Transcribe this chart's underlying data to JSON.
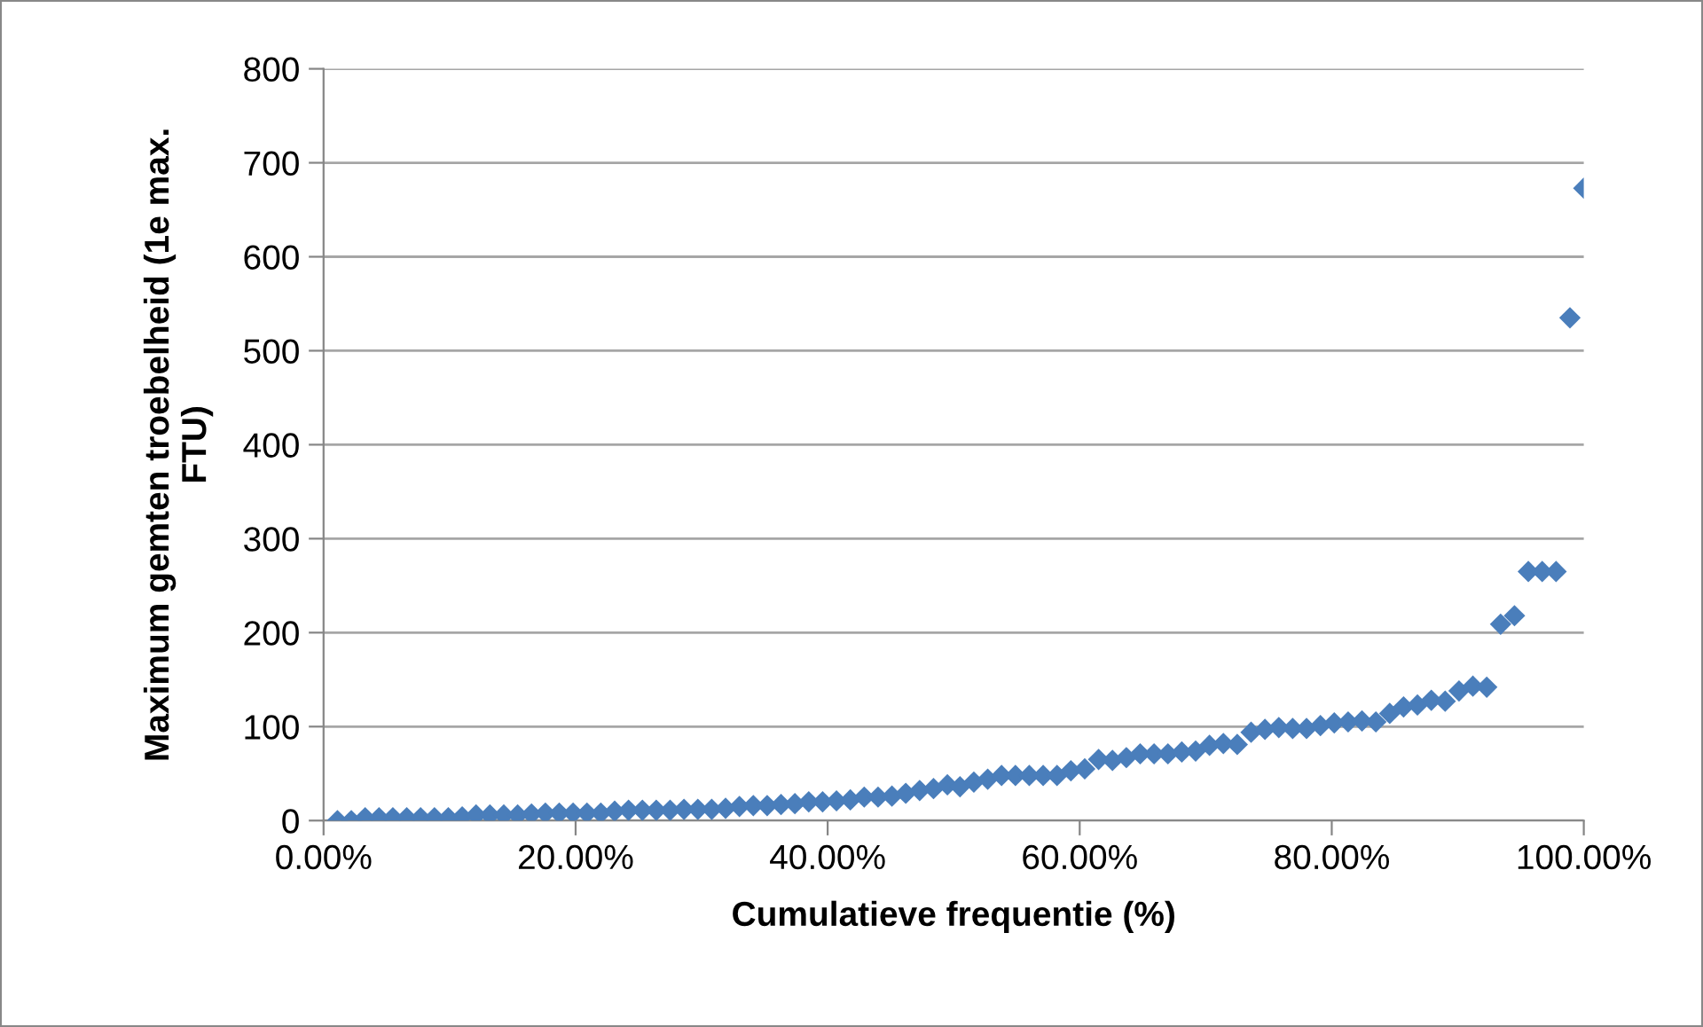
{
  "chart_data": {
    "type": "scatter",
    "xlabel": "Cumulatieve frequentie (%)",
    "ylabel": "Maximum gemten troebelheid (1e max.\nFTU)",
    "x": [
      1.1,
      2.2,
      3.3,
      4.4,
      5.5,
      6.6,
      7.7,
      8.8,
      9.9,
      11.0,
      12.1,
      13.2,
      14.3,
      15.4,
      16.5,
      17.6,
      18.7,
      19.8,
      20.9,
      22.0,
      23.1,
      24.2,
      25.3,
      26.4,
      27.5,
      28.6,
      29.7,
      30.8,
      31.9,
      33.0,
      34.1,
      35.2,
      36.3,
      37.4,
      38.5,
      39.6,
      40.7,
      41.8,
      42.9,
      44.0,
      45.1,
      46.2,
      47.3,
      48.4,
      49.5,
      50.5,
      51.6,
      52.7,
      53.8,
      54.9,
      56.0,
      57.1,
      58.2,
      59.3,
      60.4,
      61.5,
      62.6,
      63.7,
      64.8,
      65.9,
      67.0,
      68.1,
      69.2,
      70.3,
      71.4,
      72.5,
      73.6,
      74.7,
      75.8,
      76.9,
      78.0,
      79.1,
      80.2,
      81.3,
      82.4,
      83.5,
      84.6,
      85.7,
      86.8,
      87.9,
      89.0,
      90.1,
      91.2,
      92.3,
      93.4,
      94.5,
      95.6,
      96.7,
      97.8,
      98.9,
      100.0
    ],
    "series": [
      {
        "color": "#4a7ebb",
        "values": [
          0,
          0,
          3,
          3,
          3,
          3,
          3,
          3,
          3,
          4,
          6,
          6,
          6,
          6,
          7,
          8,
          8,
          8,
          8,
          8,
          10,
          11,
          11,
          11,
          11,
          12,
          12,
          12,
          13,
          15,
          16,
          16,
          17,
          18,
          20,
          20,
          21,
          22,
          25,
          25,
          26,
          29,
          32,
          34,
          38,
          36,
          41,
          44,
          48,
          48,
          48,
          48,
          48,
          53,
          55,
          65,
          64,
          67,
          71,
          71,
          71,
          73,
          74,
          80,
          82,
          81,
          94,
          97,
          99,
          98,
          98,
          101,
          104,
          105,
          106,
          105,
          114,
          121,
          123,
          128,
          127,
          138,
          143,
          142,
          209,
          218,
          265,
          265,
          265,
          535,
          673
        ]
      }
    ],
    "xlim": [
      0,
      100
    ],
    "xticks": [
      {
        "value": 0,
        "label": "0.00%"
      },
      {
        "value": 20,
        "label": "20.00%"
      },
      {
        "value": 40,
        "label": "40.00%"
      },
      {
        "value": 60,
        "label": "60.00%"
      },
      {
        "value": 80,
        "label": "80.00%"
      },
      {
        "value": 100,
        "label": "100.00%"
      }
    ],
    "ylim": [
      0,
      800
    ],
    "yticks": [
      0,
      100,
      200,
      300,
      400,
      500,
      600,
      700,
      800
    ],
    "grid": "y",
    "marker": "diamond"
  }
}
